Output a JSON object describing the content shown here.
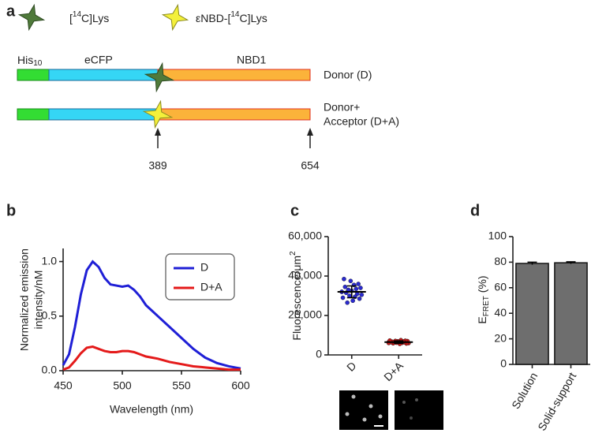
{
  "panel_labels": [
    "a",
    "b",
    "c",
    "d"
  ],
  "diagram": {
    "legend": [
      {
        "pre": "[",
        "sup": "14",
        "post": "C]Lys"
      },
      {
        "pre": "εNBD-[",
        "sup": "14",
        "post": "C]Lys"
      }
    ],
    "domains": {
      "his": "His",
      "his_sub": "10",
      "ecfp": "eCFP",
      "nbd1": "NBD1"
    },
    "constructs": {
      "donor": "Donor (D)",
      "acceptor_line1": "Donor+",
      "acceptor_line2": "Acceptor (D+A)"
    },
    "positions": [
      "389",
      "654"
    ]
  },
  "chart_data": [
    {
      "type": "line",
      "y_label": [
        "Normalized emission",
        "intensity/nM"
      ],
      "x_label": "Wavelength (nm)",
      "x": [
        450,
        455,
        460,
        465,
        470,
        475,
        480,
        485,
        490,
        495,
        500,
        505,
        510,
        515,
        520,
        525,
        530,
        540,
        550,
        560,
        570,
        580,
        590,
        600
      ],
      "series": [
        {
          "name": "D",
          "color": "#1f1fd6",
          "values": [
            0.05,
            0.15,
            0.4,
            0.7,
            0.92,
            1.0,
            0.95,
            0.85,
            0.79,
            0.78,
            0.77,
            0.78,
            0.74,
            0.68,
            0.6,
            0.55,
            0.5,
            0.4,
            0.3,
            0.2,
            0.12,
            0.07,
            0.04,
            0.02
          ]
        },
        {
          "name": "D+A",
          "color": "#e41a1a",
          "values": [
            0.01,
            0.03,
            0.09,
            0.16,
            0.21,
            0.22,
            0.2,
            0.18,
            0.17,
            0.17,
            0.18,
            0.18,
            0.17,
            0.15,
            0.13,
            0.12,
            0.11,
            0.08,
            0.06,
            0.04,
            0.03,
            0.02,
            0.01,
            0.01
          ]
        }
      ],
      "xlim": [
        450,
        600
      ],
      "xticks": [
        450,
        500,
        550,
        600
      ],
      "ylim": [
        0,
        1.12
      ],
      "yticks": [
        {
          "value": 0,
          "label": "0.0"
        },
        0.5,
        {
          "value": 1,
          "label": "1.0"
        }
      ],
      "legend": "upper right"
    },
    {
      "type": "dotplot",
      "y_label": {
        "main": "Fluorescence/μm",
        "sup": "2"
      },
      "categories": [
        "D",
        "D+A"
      ],
      "values": [
        32000,
        6500
      ],
      "errors": [
        3000,
        600
      ],
      "points": [
        [
          32000,
          30500,
          34000,
          28500,
          36000,
          31000,
          33500,
          29500,
          35500,
          27500,
          32500,
          37500,
          30000,
          33000,
          26500,
          31500,
          34500,
          38500,
          29000,
          32000
        ],
        [
          6500,
          6000,
          7000,
          5800,
          7200,
          6400,
          6800,
          6100,
          7500,
          5600,
          6600,
          6900,
          6200,
          7100,
          6300,
          5900,
          6700,
          6450,
          7300,
          6050
        ]
      ],
      "color": "#2a2ad0",
      "ylim": [
        0,
        60000
      ],
      "yticks": [
        0,
        {
          "value": 20000,
          "label": "20,000"
        },
        {
          "value": 40000,
          "label": "40,000"
        },
        {
          "value": 60000,
          "label": "60,000"
        }
      ]
    },
    {
      "type": "bar",
      "y_label": {
        "main": "E",
        "sub": "FRET",
        "unit": " (%)"
      },
      "categories": [
        "Solution",
        "Solid-support"
      ],
      "values": [
        79,
        79.5
      ],
      "errors": [
        1,
        0.8
      ],
      "color": "#6e6e6e",
      "ylim": [
        0,
        100
      ],
      "yticks": [
        0,
        20,
        40,
        60,
        80,
        100
      ]
    }
  ]
}
